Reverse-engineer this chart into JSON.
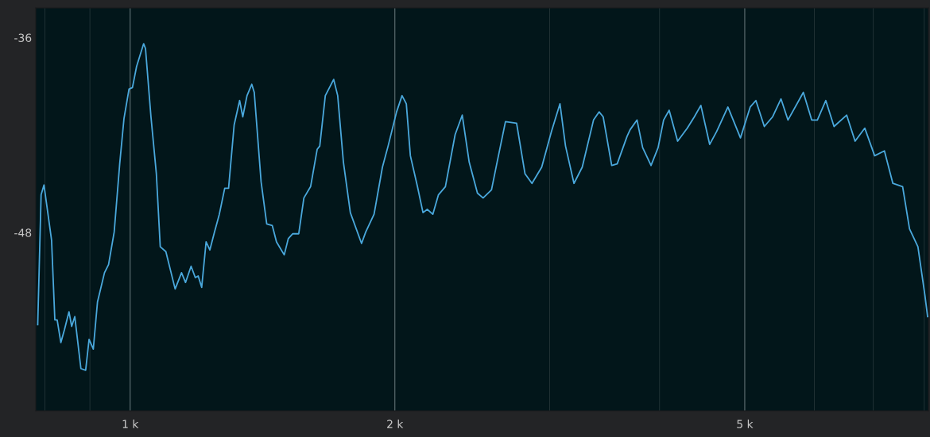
{
  "chart_data": {
    "type": "line",
    "log": "x",
    "grid": "x",
    "marker": "none",
    "line_style": "solid",
    "xlim": [
      781,
      8088
    ],
    "ylim": [
      -58.9,
      -34.1
    ],
    "xticks": [
      {
        "value": 800,
        "label": null
      },
      {
        "value": 900,
        "label": null
      },
      {
        "value": 1000,
        "label": "1 k"
      },
      {
        "value": 2000,
        "label": "2 k"
      },
      {
        "value": 3000,
        "label": null
      },
      {
        "value": 4000,
        "label": null
      },
      {
        "value": 5000,
        "label": "5 k"
      },
      {
        "value": 6000,
        "label": null
      },
      {
        "value": 7000,
        "label": null
      },
      {
        "value": 8000,
        "label": null
      }
    ],
    "yticks": [
      -36,
      -48
    ],
    "series": [
      {
        "color": "#4aa8dc",
        "x": [
          785,
          792,
          798,
          814,
          821,
          826,
          834,
          842,
          852,
          858,
          865,
          879,
          890,
          898,
          908,
          918,
          935,
          945,
          959,
          973,
          984,
          997,
          1006,
          1017,
          1036,
          1041,
          1056,
          1071,
          1082,
          1098,
          1125,
          1144,
          1156,
          1173,
          1186,
          1195,
          1206,
          1220,
          1232,
          1247,
          1263,
          1281,
          1294,
          1313,
          1332,
          1343,
          1358,
          1375,
          1384,
          1409,
          1430,
          1451,
          1467,
          1497,
          1513,
          1531,
          1555,
          1576,
          1604,
          1632,
          1643,
          1667,
          1704,
          1722,
          1748,
          1780,
          1833,
          1853,
          1894,
          1936,
          1965,
          2009,
          2038,
          2061,
          2083,
          2122,
          2153,
          2177,
          2209,
          2242,
          2283,
          2342,
          2386,
          2430,
          2483,
          2520,
          2576,
          2614,
          2672,
          2751,
          2812,
          2864,
          2938,
          3014,
          3082,
          3127,
          3197,
          3267,
          3365,
          3415,
          3451,
          3529,
          3580,
          3674,
          3703,
          3771,
          3827,
          3912,
          3985,
          4043,
          4102,
          4194,
          4302,
          4382,
          4457,
          4561,
          4646,
          4784,
          4944,
          5072,
          5148,
          5263,
          5379,
          5498,
          5599,
          5829,
          5958,
          6047,
          6182,
          6317,
          6530,
          6675,
          6847,
          7026,
          7208,
          7369,
          7560,
          7698,
          7869,
          8015,
          8071
        ],
        "values": [
          -53.6,
          -45.6,
          -45.0,
          -48.4,
          -53.3,
          -53.3,
          -54.7,
          -53.9,
          -52.8,
          -53.7,
          -53.1,
          -56.3,
          -56.4,
          -54.5,
          -55.1,
          -52.2,
          -50.4,
          -49.9,
          -47.9,
          -43.7,
          -40.9,
          -39.1,
          -39.0,
          -37.7,
          -36.3,
          -36.6,
          -40.8,
          -44.3,
          -48.8,
          -49.1,
          -51.4,
          -50.4,
          -51.0,
          -50.0,
          -50.7,
          -50.6,
          -51.3,
          -48.5,
          -49.0,
          -47.9,
          -46.8,
          -45.2,
          -45.2,
          -41.3,
          -39.8,
          -40.8,
          -39.5,
          -38.8,
          -39.3,
          -44.8,
          -47.4,
          -47.5,
          -48.5,
          -49.3,
          -48.3,
          -48.0,
          -48.0,
          -45.8,
          -45.1,
          -42.8,
          -42.6,
          -39.5,
          -38.5,
          -39.5,
          -43.6,
          -46.7,
          -48.6,
          -47.9,
          -46.8,
          -43.9,
          -42.6,
          -40.5,
          -39.5,
          -40.0,
          -43.2,
          -45.1,
          -46.7,
          -46.5,
          -46.8,
          -45.6,
          -45.1,
          -41.9,
          -40.7,
          -43.6,
          -45.5,
          -45.8,
          -45.3,
          -43.6,
          -41.1,
          -41.2,
          -44.3,
          -44.9,
          -43.9,
          -41.7,
          -40.0,
          -42.6,
          -44.9,
          -43.9,
          -41.0,
          -40.5,
          -40.8,
          -43.8,
          -43.7,
          -42.0,
          -41.6,
          -41.0,
          -42.7,
          -43.8,
          -42.7,
          -41.0,
          -40.4,
          -42.3,
          -41.5,
          -40.8,
          -40.1,
          -42.5,
          -41.7,
          -40.2,
          -42.1,
          -40.2,
          -39.8,
          -41.4,
          -40.8,
          -39.7,
          -41.0,
          -39.3,
          -41.0,
          -41.0,
          -39.8,
          -41.4,
          -40.7,
          -42.3,
          -41.5,
          -43.2,
          -42.9,
          -44.9,
          -45.1,
          -47.7,
          -48.8,
          -51.8,
          -53.1
        ]
      }
    ]
  }
}
